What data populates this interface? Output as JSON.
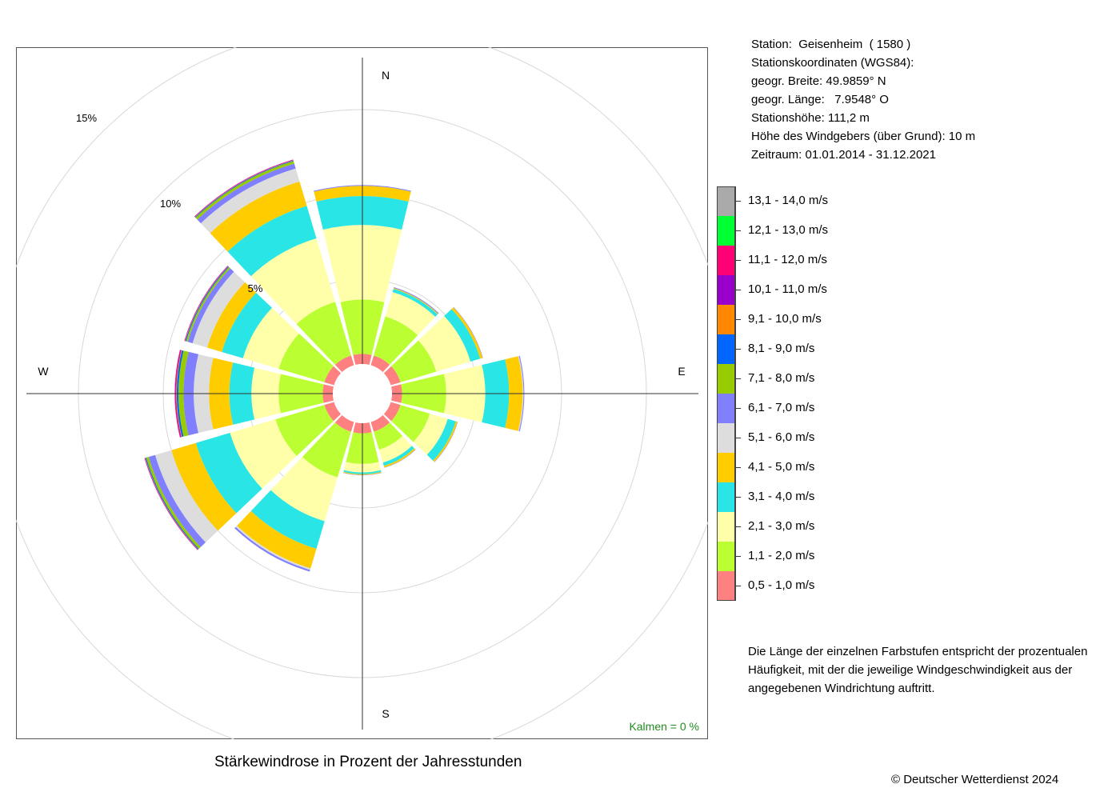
{
  "chart_data": {
    "type": "windrose",
    "title": "Stärkewindrose in Prozent der Jahresstunden",
    "directions": [
      {
        "label": "N",
        "angle": 0
      },
      {
        "label": "E",
        "angle": 90
      },
      {
        "label": "S",
        "angle": 180
      },
      {
        "label": "W",
        "angle": 270
      }
    ],
    "sector_angles": [
      0,
      30,
      60,
      90,
      120,
      150,
      180,
      210,
      240,
      270,
      300,
      330
    ],
    "speed_classes": [
      {
        "label": "0,5 - 1,0 m/s",
        "color": "#FF8080"
      },
      {
        "label": "1,1 - 2,0 m/s",
        "color": "#BBFF33"
      },
      {
        "label": "2,1 - 3,0 m/s",
        "color": "#FFFFAA"
      },
      {
        "label": "3,1 - 4,0 m/s",
        "color": "#2AE5E5"
      },
      {
        "label": "4,1 - 5,0 m/s",
        "color": "#FFCC00"
      },
      {
        "label": "5,1 - 6,0 m/s",
        "color": "#DDDDDD"
      },
      {
        "label": "6,1 - 7,0 m/s",
        "color": "#8080FF"
      },
      {
        "label": "7,1 - 8,0 m/s",
        "color": "#99CC00"
      },
      {
        "label": "8,1 - 9,0 m/s",
        "color": "#0066FF"
      },
      {
        "label": "9,1 - 10,0 m/s",
        "color": "#FF8800"
      },
      {
        "label": "10,1 - 11,0 m/s",
        "color": "#9900CC"
      },
      {
        "label": "11,1 - 12,0 m/s",
        "color": "#FF0077"
      },
      {
        "label": "12,1 - 13,0 m/s",
        "color": "#00FF33"
      },
      {
        "label": "13,1 - 14,0 m/s",
        "color": "#AAAAAA"
      }
    ],
    "values": [
      [
        0.6,
        3.2,
        4.4,
        1.7,
        0.6,
        0.0,
        0.05,
        0,
        0,
        0,
        0,
        0,
        0,
        0
      ],
      [
        0.6,
        2.4,
        1.5,
        0.2,
        0.05,
        0.0,
        0.05,
        0,
        0,
        0,
        0,
        0,
        0,
        0
      ],
      [
        0.6,
        2.2,
        2.1,
        0.6,
        0.15,
        0.0,
        0.02,
        0,
        0,
        0,
        0,
        0,
        0,
        0
      ],
      [
        0.6,
        2.6,
        2.3,
        1.4,
        0.8,
        0.05,
        0.05,
        0,
        0,
        0,
        0,
        0,
        0,
        0
      ],
      [
        0.6,
        1.8,
        1.1,
        0.5,
        0.1,
        0.0,
        0.02,
        0,
        0,
        0,
        0,
        0,
        0,
        0
      ],
      [
        0.6,
        1.1,
        0.8,
        0.2,
        0.1,
        0.0,
        0.02,
        0,
        0,
        0,
        0,
        0,
        0,
        0
      ],
      [
        0.6,
        1.8,
        0.5,
        0.1,
        0.05,
        0.0,
        0.02,
        0,
        0,
        0,
        0,
        0,
        0,
        0
      ],
      [
        0.6,
        2.8,
        2.7,
        1.7,
        1.2,
        0.1,
        0.1,
        0,
        0,
        0,
        0,
        0,
        0,
        0
      ],
      [
        0.6,
        3.0,
        2.8,
        2.1,
        1.5,
        1.0,
        0.4,
        0.15,
        0.05,
        0.02,
        0.02,
        0.02,
        0,
        0
      ],
      [
        0.6,
        2.6,
        1.6,
        1.3,
        1.2,
        0.9,
        0.6,
        0.3,
        0.1,
        0.04,
        0.04,
        0.04,
        0,
        0
      ],
      [
        0.6,
        2.8,
        2.2,
        1.3,
        0.9,
        0.9,
        0.3,
        0.1,
        0.05,
        0.02,
        0.02,
        0.02,
        0,
        0
      ],
      [
        0.6,
        3.3,
        3.9,
        2.0,
        1.5,
        0.8,
        0.3,
        0.15,
        0.04,
        0.02,
        0.02,
        0.02,
        0,
        0
      ]
    ],
    "ring_labels": [
      "5%",
      "10%",
      "15%"
    ],
    "calm_label": "Kalmen  =  0 %"
  },
  "station_info": [
    "Station:  Geisenheim  ( 1580 )",
    "Stationskoordinaten (WGS84):",
    "geogr. Breite: 49.9859° N",
    "geogr. Länge:   7.9548° O",
    "Stationshöhe: 111,2 m",
    "Höhe des Windgebers (über Grund): 10 m",
    "Zeitraum: 01.01.2014 - 31.12.2021"
  ],
  "explanation": "Die Länge der einzelnen Farbstufen entspricht der prozentualen Häufigkeit, mit der die jeweilige Windgeschwindigkeit aus der angegebenen Windrichtung auftritt.",
  "copyright": "© Deutscher Wetterdienst  2024"
}
